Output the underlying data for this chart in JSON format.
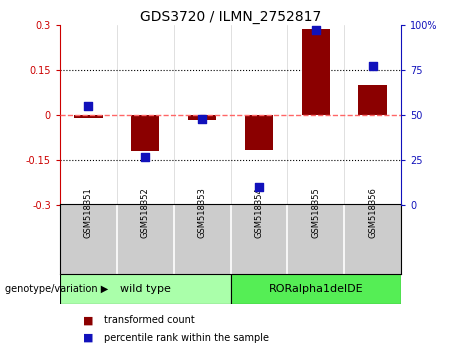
{
  "title": "GDS3720 / ILMN_2752817",
  "samples": [
    "GSM518351",
    "GSM518352",
    "GSM518353",
    "GSM518354",
    "GSM518355",
    "GSM518356"
  ],
  "transformed_count": [
    -0.01,
    -0.12,
    -0.015,
    -0.115,
    0.285,
    0.1
  ],
  "percentile_rank": [
    55,
    27,
    48,
    10,
    97,
    77
  ],
  "left_ylim": [
    -0.3,
    0.3
  ],
  "right_ylim": [
    0,
    100
  ],
  "left_yticks": [
    -0.3,
    -0.15,
    0,
    0.15,
    0.3
  ],
  "right_yticks": [
    0,
    25,
    50,
    75,
    100
  ],
  "left_ytick_labels": [
    "-0.3",
    "-0.15",
    "0",
    "0.15",
    "0.3"
  ],
  "right_ytick_labels": [
    "0",
    "25",
    "50",
    "75",
    "100%"
  ],
  "hlines": [
    0.15,
    -0.15
  ],
  "bar_color": "#8B0000",
  "dot_color": "#1111BB",
  "zero_line_color": "#FF6666",
  "label_bg_color": "#CCCCCC",
  "groups": [
    {
      "label": "wild type",
      "indices": [
        0,
        1,
        2
      ],
      "color": "#AAFFAA"
    },
    {
      "label": "RORalpha1delDE",
      "indices": [
        3,
        4,
        5
      ],
      "color": "#55EE55"
    }
  ],
  "group_label_prefix": "genotype/variation",
  "legend_items": [
    {
      "label": "transformed count",
      "color": "#8B0000"
    },
    {
      "label": "percentile rank within the sample",
      "color": "#1111BB"
    }
  ],
  "bar_width": 0.5,
  "dot_size": 35,
  "title_fontsize": 10,
  "tick_fontsize": 7,
  "sample_fontsize": 6,
  "group_fontsize": 8,
  "legend_fontsize": 7
}
